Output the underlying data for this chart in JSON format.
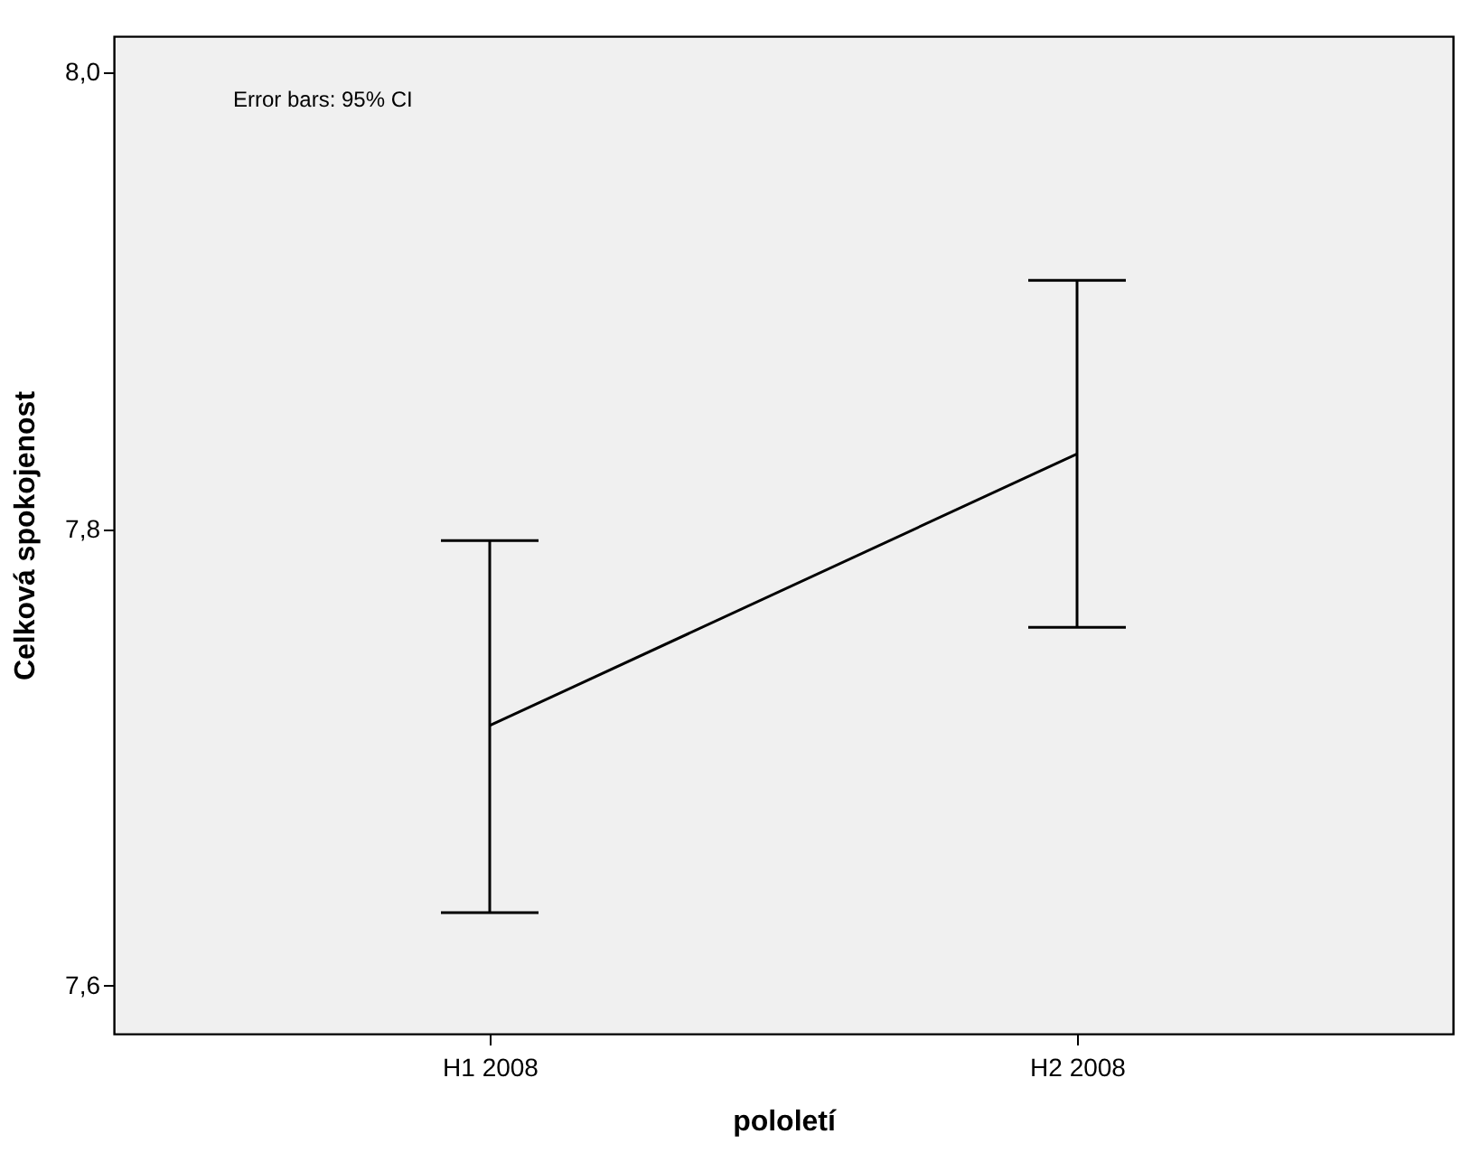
{
  "chart_data": {
    "type": "line",
    "xlabel": "pololetí",
    "ylabel": "Celková spokojenost",
    "categories": [
      "H1 2008",
      "H2 2008"
    ],
    "color": "#000000",
    "values": [
      7.714,
      7.833
    ],
    "errors": [
      [
        7.632,
        7.795
      ],
      [
        7.757,
        7.909
      ]
    ],
    "ylim": [
      7.579,
      8.016
    ],
    "yticks": [
      {
        "value": 7.6,
        "label": "7,6"
      },
      {
        "value": 7.8,
        "label": "7,8"
      },
      {
        "value": 8.0,
        "label": "8,0"
      }
    ],
    "annotations": [
      "Error bars: 95% CI"
    ],
    "grid": false,
    "marker": "none",
    "line_style": "solid"
  }
}
